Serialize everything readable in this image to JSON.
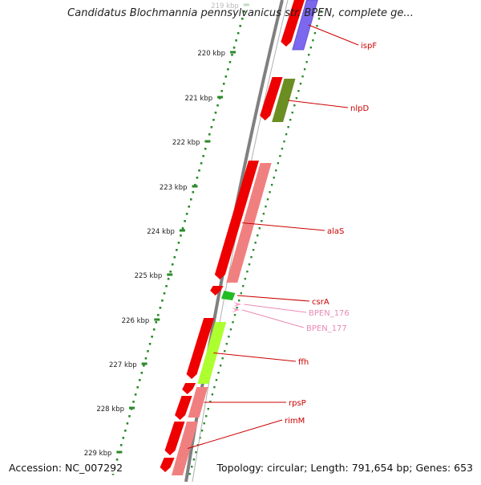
{
  "title": "Candidatus Blochmannia pennsylvanicus str. BPEN, complete ge...",
  "footer": {
    "accession": "Accession: NC_007292",
    "topology": "Topology: circular; Length: 791,654 bp; Genes: 653"
  },
  "map": {
    "kbp_ticks": [
      {
        "label": "219 kbp",
        "faded": true
      },
      {
        "label": "220 kbp"
      },
      {
        "label": "221 kbp"
      },
      {
        "label": "222 kbp"
      },
      {
        "label": "223 kbp"
      },
      {
        "label": "224 kbp"
      },
      {
        "label": "225 kbp"
      },
      {
        "label": "226 kbp"
      },
      {
        "label": "227 kbp"
      },
      {
        "label": "228 kbp"
      },
      {
        "label": "229 kbp"
      }
    ],
    "colors": {
      "backbone": "#808080",
      "dotted_track": "#2a8a2a",
      "cds": "#ee0000",
      "label_red": "#cc0000",
      "label_pink": "#e98ab4"
    },
    "genes": [
      {
        "name": "ispF",
        "color": "#7b68ee",
        "label_color": "#cc0000"
      },
      {
        "name": "nlpD",
        "color": "#6b8e23",
        "label_color": "#cc0000"
      },
      {
        "name": "alaS",
        "color": "#f08080",
        "label_color": "#cc0000"
      },
      {
        "name": "csrA",
        "color": "#22bb22",
        "label_color": "#cc0000"
      },
      {
        "name": "BPEN_176",
        "color": "#ff99cc",
        "label_color": "#e98ab4"
      },
      {
        "name": "BPEN_177",
        "color": "#ff99cc",
        "label_color": "#e98ab4"
      },
      {
        "name": "ffh",
        "color": "#adff2f",
        "label_color": "#cc0000"
      },
      {
        "name": "rpsP",
        "color": "#f08080",
        "label_color": "#cc0000"
      },
      {
        "name": "rimM",
        "color": "#f08080",
        "label_color": "#cc0000"
      }
    ]
  }
}
